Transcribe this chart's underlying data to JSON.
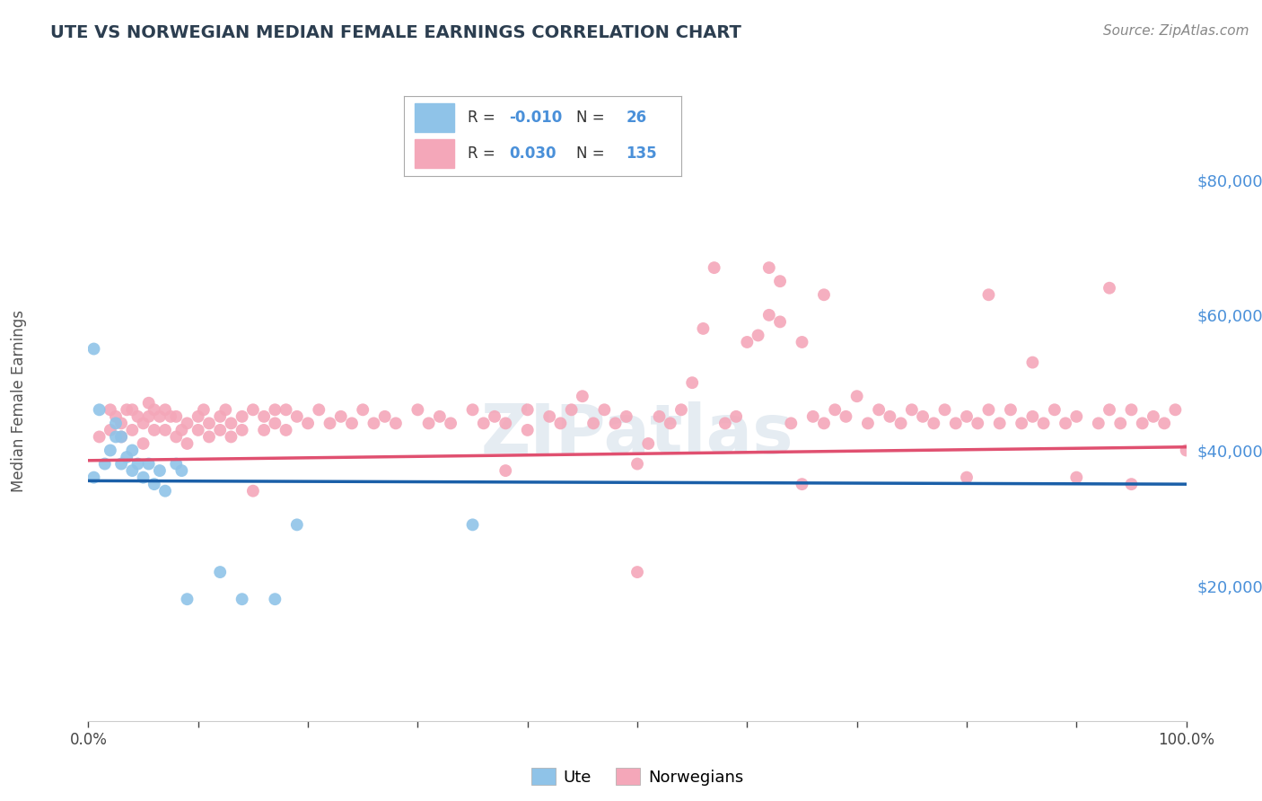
{
  "title": "UTE VS NORWEGIAN MEDIAN FEMALE EARNINGS CORRELATION CHART",
  "source": "Source: ZipAtlas.com",
  "ylabel": "Median Female Earnings",
  "xlim": [
    0,
    1.0
  ],
  "ylim": [
    0,
    90000
  ],
  "yticks": [
    20000,
    40000,
    60000,
    80000
  ],
  "ute_color": "#8fc3e8",
  "norwegian_color": "#f4a7b9",
  "ute_line_color": "#1a5fa8",
  "norwegian_line_color": "#e05070",
  "background_color": "#ffffff",
  "grid_color": "#c8d8e8",
  "ytick_color": "#4a90d9",
  "watermark": "ZIPatlas",
  "ute_x": [
    0.005,
    0.01,
    0.015,
    0.02,
    0.025,
    0.025,
    0.03,
    0.03,
    0.035,
    0.04,
    0.04,
    0.045,
    0.05,
    0.055,
    0.06,
    0.065,
    0.07,
    0.08,
    0.085,
    0.09,
    0.12,
    0.14,
    0.17,
    0.19,
    0.35,
    0.005
  ],
  "ute_y": [
    36000,
    46000,
    38000,
    40000,
    42000,
    44000,
    42000,
    38000,
    39000,
    40000,
    37000,
    38000,
    36000,
    38000,
    35000,
    37000,
    34000,
    38000,
    37000,
    18000,
    22000,
    18000,
    18000,
    29000,
    29000,
    55000
  ],
  "norw_x": [
    0.01,
    0.02,
    0.02,
    0.025,
    0.03,
    0.03,
    0.035,
    0.04,
    0.04,
    0.045,
    0.05,
    0.05,
    0.055,
    0.055,
    0.06,
    0.06,
    0.065,
    0.07,
    0.07,
    0.075,
    0.08,
    0.08,
    0.085,
    0.09,
    0.09,
    0.1,
    0.1,
    0.105,
    0.11,
    0.11,
    0.12,
    0.12,
    0.125,
    0.13,
    0.13,
    0.14,
    0.14,
    0.15,
    0.15,
    0.16,
    0.16,
    0.17,
    0.17,
    0.18,
    0.18,
    0.19,
    0.2,
    0.21,
    0.22,
    0.23,
    0.24,
    0.25,
    0.26,
    0.27,
    0.28,
    0.3,
    0.31,
    0.32,
    0.33,
    0.35,
    0.36,
    0.37,
    0.38,
    0.4,
    0.4,
    0.42,
    0.43,
    0.44,
    0.45,
    0.46,
    0.47,
    0.48,
    0.49,
    0.5,
    0.51,
    0.52,
    0.53,
    0.54,
    0.55,
    0.56,
    0.57,
    0.58,
    0.59,
    0.6,
    0.61,
    0.62,
    0.63,
    0.64,
    0.65,
    0.66,
    0.67,
    0.68,
    0.69,
    0.7,
    0.71,
    0.72,
    0.73,
    0.74,
    0.75,
    0.76,
    0.77,
    0.78,
    0.79,
    0.8,
    0.81,
    0.82,
    0.83,
    0.84,
    0.85,
    0.86,
    0.87,
    0.88,
    0.89,
    0.9,
    0.92,
    0.93,
    0.94,
    0.95,
    0.96,
    0.97,
    0.98,
    0.99,
    1.0,
    0.38,
    0.5,
    0.65,
    0.67,
    0.8,
    0.82,
    0.86,
    0.9,
    0.93,
    0.95,
    0.62,
    0.63
  ],
  "norw_y": [
    42000,
    43000,
    46000,
    45000,
    42000,
    44000,
    46000,
    43000,
    46000,
    45000,
    41000,
    44000,
    45000,
    47000,
    43000,
    46000,
    45000,
    43000,
    46000,
    45000,
    42000,
    45000,
    43000,
    44000,
    41000,
    45000,
    43000,
    46000,
    44000,
    42000,
    45000,
    43000,
    46000,
    44000,
    42000,
    45000,
    43000,
    46000,
    34000,
    45000,
    43000,
    46000,
    44000,
    43000,
    46000,
    45000,
    44000,
    46000,
    44000,
    45000,
    44000,
    46000,
    44000,
    45000,
    44000,
    46000,
    44000,
    45000,
    44000,
    46000,
    44000,
    45000,
    44000,
    46000,
    43000,
    45000,
    44000,
    46000,
    48000,
    44000,
    46000,
    44000,
    45000,
    38000,
    41000,
    45000,
    44000,
    46000,
    50000,
    58000,
    67000,
    44000,
    45000,
    56000,
    57000,
    60000,
    59000,
    44000,
    56000,
    45000,
    44000,
    46000,
    45000,
    48000,
    44000,
    46000,
    45000,
    44000,
    46000,
    45000,
    44000,
    46000,
    44000,
    45000,
    44000,
    46000,
    44000,
    46000,
    44000,
    45000,
    44000,
    46000,
    44000,
    45000,
    44000,
    46000,
    44000,
    46000,
    44000,
    45000,
    44000,
    46000,
    40000,
    37000,
    22000,
    35000,
    63000,
    36000,
    63000,
    53000,
    36000,
    64000,
    35000,
    67000,
    65000
  ]
}
